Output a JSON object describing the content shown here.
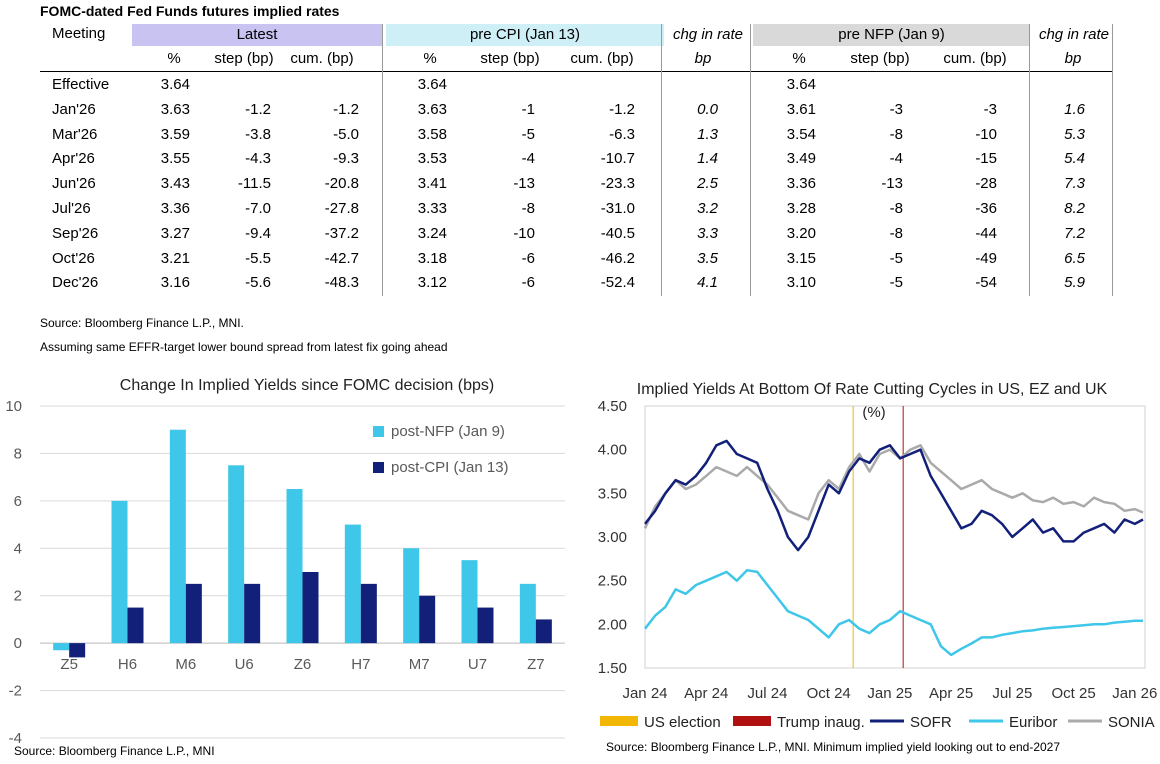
{
  "table": {
    "title": "FOMC-dated Fed Funds futures implied rates",
    "meeting_header": "Meeting",
    "groups": [
      {
        "label": "Latest",
        "color": "#c8c3f0"
      },
      {
        "label": "pre CPI (Jan 13)",
        "color": "#cfeff7"
      },
      {
        "label": "chg in rate",
        "color": "#ffffff"
      },
      {
        "label": "pre NFP (Jan 9)",
        "color": "#d9d9d9"
      },
      {
        "label": "chg in rate",
        "color": "#ffffff"
      }
    ],
    "subheaders": [
      "%",
      "step (bp)",
      "cum. (bp)",
      "%",
      "step (bp)",
      "cum. (bp)",
      "bp",
      "%",
      "step (bp)",
      "cum. (bp)",
      "bp"
    ],
    "rows": [
      [
        "Effective",
        "3.64",
        "",
        "",
        "3.64",
        "",
        "",
        "",
        "3.64",
        "",
        "",
        ""
      ],
      [
        "Jan'26",
        "3.63",
        "-1.2",
        "-1.2",
        "3.63",
        "-1",
        "-1.2",
        "0.0",
        "3.61",
        "-3",
        "-3",
        "1.6"
      ],
      [
        "Mar'26",
        "3.59",
        "-3.8",
        "-5.0",
        "3.58",
        "-5",
        "-6.3",
        "1.3",
        "3.54",
        "-8",
        "-10",
        "5.3"
      ],
      [
        "Apr'26",
        "3.55",
        "-4.3",
        "-9.3",
        "3.53",
        "-4",
        "-10.7",
        "1.4",
        "3.49",
        "-4",
        "-15",
        "5.4"
      ],
      [
        "Jun'26",
        "3.43",
        "-11.5",
        "-20.8",
        "3.41",
        "-13",
        "-23.3",
        "2.5",
        "3.36",
        "-13",
        "-28",
        "7.3"
      ],
      [
        "Jul'26",
        "3.36",
        "-7.0",
        "-27.8",
        "3.33",
        "-8",
        "-31.0",
        "3.2",
        "3.28",
        "-8",
        "-36",
        "8.2"
      ],
      [
        "Sep'26",
        "3.27",
        "-9.4",
        "-37.2",
        "3.24",
        "-10",
        "-40.5",
        "3.3",
        "3.20",
        "-8",
        "-44",
        "7.2"
      ],
      [
        "Oct'26",
        "3.21",
        "-5.5",
        "-42.7",
        "3.18",
        "-6",
        "-46.2",
        "3.5",
        "3.15",
        "-5",
        "-49",
        "6.5"
      ],
      [
        "Dec'26",
        "3.16",
        "-5.6",
        "-48.3",
        "3.12",
        "-6",
        "-52.4",
        "4.1",
        "3.10",
        "-5",
        "-54",
        "5.9"
      ]
    ],
    "source": "Source: Bloomberg Finance L.P., MNI.",
    "assumption": "Assuming same  EFFR-target lower bound spread from latest fix going ahead"
  },
  "chart_data": [
    {
      "type": "bar",
      "title": "Change In Implied Yields since FOMC decision (bps)",
      "categories": [
        "Z5",
        "H6",
        "M6",
        "U6",
        "Z6",
        "H7",
        "M7",
        "U7",
        "Z7"
      ],
      "series": [
        {
          "name": "post-NFP (Jan 9)",
          "color": "#3ec7e8",
          "values": [
            -0.3,
            6.0,
            9.0,
            7.5,
            6.5,
            5.0,
            4.0,
            3.5,
            2.5
          ]
        },
        {
          "name": "post-CPI (Jan 13)",
          "color": "#12207a",
          "values": [
            -0.6,
            1.5,
            2.5,
            2.5,
            3.0,
            2.5,
            2.0,
            1.5,
            1.0
          ]
        }
      ],
      "ylim": [
        -4,
        10
      ],
      "yticks": [
        "10",
        "8",
        "6",
        "4",
        "2",
        "0",
        "-2",
        "-4"
      ],
      "source": "Source: Bloomberg Finance L.P., MNI"
    },
    {
      "type": "line",
      "title": "Implied Yields At Bottom Of Rate Cutting Cycles in US, EZ and UK",
      "unit_label": "(%)",
      "ylim": [
        1.5,
        4.5
      ],
      "yticks": [
        "4.50",
        "4.00",
        "3.50",
        "3.00",
        "2.50",
        "2.00",
        "1.50"
      ],
      "xticks": [
        "Jan 24",
        "Apr 24",
        "Jul 24",
        "Oct 24",
        "Jan 25",
        "Apr 25",
        "Jul 25",
        "Oct 25",
        "Jan 26"
      ],
      "x_range_months": [
        0,
        24.5
      ],
      "events": [
        {
          "name": "US election",
          "month": 10.2,
          "color": "#f2b705"
        },
        {
          "name": "Trump inaug.",
          "month": 12.65,
          "color": "#b01010"
        }
      ],
      "series": [
        {
          "name": "SOFR",
          "color": "#12207a",
          "months": [
            0,
            0.5,
            1,
            1.5,
            2,
            2.5,
            3,
            3.5,
            4,
            4.5,
            5,
            5.5,
            6,
            6.5,
            7,
            7.5,
            8,
            8.5,
            9,
            9.5,
            10,
            10.5,
            11,
            11.5,
            12,
            12.5,
            13,
            13.5,
            14,
            14.5,
            15,
            15.5,
            16,
            16.5,
            17,
            17.5,
            18,
            18.5,
            19,
            19.5,
            20,
            20.5,
            21,
            21.5,
            22,
            22.5,
            23,
            23.5,
            24,
            24.4
          ],
          "values": [
            3.15,
            3.3,
            3.5,
            3.65,
            3.6,
            3.7,
            3.85,
            4.05,
            4.1,
            3.95,
            3.9,
            3.85,
            3.55,
            3.3,
            3.0,
            2.85,
            3.0,
            3.3,
            3.6,
            3.5,
            3.75,
            3.9,
            3.85,
            4.0,
            4.05,
            3.9,
            3.95,
            4.0,
            3.7,
            3.5,
            3.3,
            3.1,
            3.15,
            3.3,
            3.25,
            3.15,
            3.0,
            3.1,
            3.2,
            3.05,
            3.1,
            2.95,
            2.95,
            3.05,
            3.1,
            3.15,
            3.05,
            3.2,
            3.15,
            3.2
          ]
        },
        {
          "name": "Euribor",
          "color": "#3ec7e8",
          "months": [
            0,
            0.5,
            1,
            1.5,
            2,
            2.5,
            3,
            3.5,
            4,
            4.5,
            5,
            5.5,
            6,
            6.5,
            7,
            7.5,
            8,
            8.5,
            9,
            9.5,
            10,
            10.5,
            11,
            11.5,
            12,
            12.5,
            13,
            13.5,
            14,
            14.5,
            15,
            15.5,
            16,
            16.5,
            17,
            17.5,
            18,
            18.5,
            19,
            19.5,
            20,
            20.5,
            21,
            21.5,
            22,
            22.5,
            23,
            23.5,
            24,
            24.4
          ],
          "values": [
            1.95,
            2.1,
            2.2,
            2.4,
            2.35,
            2.45,
            2.5,
            2.55,
            2.6,
            2.5,
            2.62,
            2.6,
            2.45,
            2.3,
            2.15,
            2.1,
            2.05,
            1.95,
            1.85,
            2.0,
            2.05,
            1.95,
            1.9,
            2.0,
            2.05,
            2.15,
            2.1,
            2.05,
            2.0,
            1.75,
            1.65,
            1.72,
            1.78,
            1.85,
            1.85,
            1.88,
            1.9,
            1.92,
            1.93,
            1.95,
            1.96,
            1.97,
            1.98,
            1.99,
            2.0,
            2.0,
            2.02,
            2.03,
            2.04,
            2.04
          ]
        },
        {
          "name": "SONIA",
          "color": "#aaaaaa",
          "months": [
            0,
            0.5,
            1,
            1.5,
            2,
            2.5,
            3,
            3.5,
            4,
            4.5,
            5,
            5.5,
            6,
            6.5,
            7,
            7.5,
            8,
            8.5,
            9,
            9.5,
            10,
            10.5,
            11,
            11.5,
            12,
            12.5,
            13,
            13.5,
            14,
            14.5,
            15,
            15.5,
            16,
            16.5,
            17,
            17.5,
            18,
            18.5,
            19,
            19.5,
            20,
            20.5,
            21,
            21.5,
            22,
            22.5,
            23,
            23.5,
            24,
            24.4
          ],
          "values": [
            3.1,
            3.35,
            3.5,
            3.65,
            3.55,
            3.6,
            3.7,
            3.8,
            3.75,
            3.7,
            3.8,
            3.7,
            3.6,
            3.45,
            3.3,
            3.25,
            3.2,
            3.5,
            3.65,
            3.55,
            3.8,
            3.95,
            3.75,
            3.95,
            4.0,
            3.9,
            4.0,
            4.05,
            3.85,
            3.75,
            3.65,
            3.55,
            3.6,
            3.65,
            3.55,
            3.5,
            3.45,
            3.5,
            3.42,
            3.4,
            3.45,
            3.38,
            3.4,
            3.35,
            3.45,
            3.4,
            3.38,
            3.3,
            3.32,
            3.28
          ]
        }
      ],
      "source": "Source: Bloomberg Finance L.P., MNI. Minimum implied yield looking out to end-2027"
    }
  ]
}
